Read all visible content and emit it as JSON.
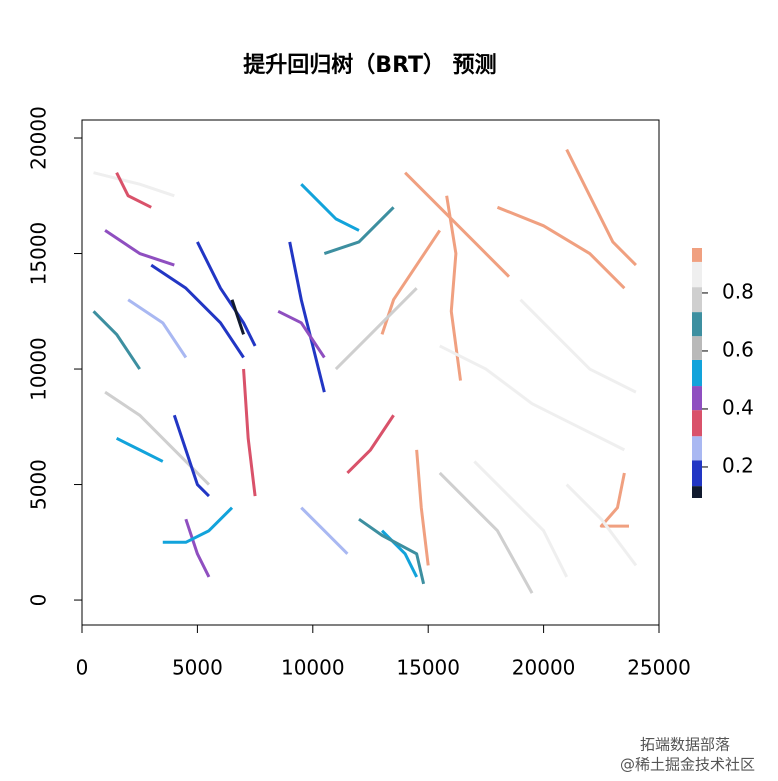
{
  "chart_data": {
    "type": "stream-map",
    "title": "提升回归树（BRT） 预测",
    "xlim": [
      0,
      25000
    ],
    "ylim": [
      -1080,
      20780
    ],
    "xticks": [
      0,
      5000,
      10000,
      15000,
      20000,
      25000
    ],
    "yticks": [
      0,
      5000,
      10000,
      15000,
      20000
    ],
    "colorbar": {
      "breaks": [
        0.093,
        0.134,
        0.223,
        0.306,
        0.396,
        0.479,
        0.569,
        0.651,
        0.734,
        0.82,
        0.907,
        0.955
      ],
      "colors": [
        "#111a2e",
        "#2236c4",
        "#a9b8f2",
        "#d9526a",
        "#8f4fc0",
        "#12a3db",
        "#b9b9b9",
        "#3d8fa0",
        "#cfcfcf",
        "#efefef",
        "#f0a080"
      ],
      "ticks": [
        0.2,
        0.4,
        0.6,
        0.8
      ]
    },
    "streams": [
      {
        "x": [
          14000,
          15500,
          17000,
          18500
        ],
        "y": [
          18500,
          17000,
          15500,
          14000
        ],
        "value": 0.93
      },
      {
        "x": [
          21000,
          22000,
          23000,
          24000
        ],
        "y": [
          19500,
          17500,
          15500,
          14500
        ],
        "value": 0.93
      },
      {
        "x": [
          18000,
          20000,
          22000,
          23500
        ],
        "y": [
          17000,
          16200,
          15000,
          13500
        ],
        "value": 0.93
      },
      {
        "x": [
          15500,
          14500,
          13500,
          13000
        ],
        "y": [
          16000,
          14500,
          13000,
          11500
        ],
        "value": 0.93
      },
      {
        "x": [
          15800,
          16200,
          16000,
          16400
        ],
        "y": [
          17500,
          15000,
          12500,
          9500
        ],
        "value": 0.93
      },
      {
        "x": [
          14500,
          14700,
          15000
        ],
        "y": [
          6500,
          4000,
          1500
        ],
        "value": 0.93
      },
      {
        "x": [
          23500,
          23200,
          22500,
          23700
        ],
        "y": [
          5500,
          4000,
          3200,
          3200
        ],
        "value": 0.93
      },
      {
        "x": [
          15500,
          17500,
          19500,
          21500,
          23500
        ],
        "y": [
          11000,
          10000,
          8500,
          7500,
          6500
        ],
        "value": 0.86
      },
      {
        "x": [
          17000,
          18500,
          20000,
          21000
        ],
        "y": [
          6000,
          4500,
          3000,
          1000
        ],
        "value": 0.86
      },
      {
        "x": [
          19000,
          20500,
          22000,
          24000
        ],
        "y": [
          13000,
          11500,
          10000,
          9000
        ],
        "value": 0.86
      },
      {
        "x": [
          21000,
          22500,
          24000
        ],
        "y": [
          5000,
          3500,
          1500
        ],
        "value": 0.86
      },
      {
        "x": [
          15500,
          16500,
          18000,
          19500
        ],
        "y": [
          5500,
          4500,
          3000,
          300
        ],
        "value": 0.77
      },
      {
        "x": [
          11000,
          12500,
          13500,
          14500
        ],
        "y": [
          10000,
          11500,
          12500,
          13500
        ],
        "value": 0.77
      },
      {
        "x": [
          1000,
          2500,
          4000,
          5500
        ],
        "y": [
          9000,
          8000,
          6500,
          5000
        ],
        "value": 0.77
      },
      {
        "x": [
          3000,
          4500,
          6000,
          7000
        ],
        "y": [
          14500,
          13500,
          12000,
          10500
        ],
        "value": 0.18
      },
      {
        "x": [
          5000,
          6000,
          7000,
          7500
        ],
        "y": [
          15500,
          13500,
          12000,
          11000
        ],
        "value": 0.18
      },
      {
        "x": [
          4000,
          4500,
          5000,
          5500
        ],
        "y": [
          8000,
          6500,
          5000,
          4500
        ],
        "value": 0.18
      },
      {
        "x": [
          6500,
          7000
        ],
        "y": [
          13000,
          11500
        ],
        "value": 0.11
      },
      {
        "x": [
          9000,
          9500,
          10000,
          10500
        ],
        "y": [
          15500,
          13000,
          11000,
          9000
        ],
        "value": 0.18
      },
      {
        "x": [
          2000,
          3500,
          4500
        ],
        "y": [
          13000,
          12000,
          10500
        ],
        "value": 0.26
      },
      {
        "x": [
          9500,
          10500,
          11500
        ],
        "y": [
          4000,
          3000,
          2000
        ],
        "value": 0.26
      },
      {
        "x": [
          7000,
          7200,
          7500
        ],
        "y": [
          10000,
          7000,
          4500
        ],
        "value": 0.35
      },
      {
        "x": [
          11500,
          12500,
          13500
        ],
        "y": [
          5500,
          6500,
          8000
        ],
        "value": 0.35
      },
      {
        "x": [
          1000,
          2500,
          4000
        ],
        "y": [
          16000,
          15000,
          14500
        ],
        "value": 0.44
      },
      {
        "x": [
          4500,
          5000,
          5500
        ],
        "y": [
          3500,
          2000,
          1000
        ],
        "value": 0.44
      },
      {
        "x": [
          3500,
          4500,
          5500,
          6500
        ],
        "y": [
          2500,
          2500,
          3000,
          4000
        ],
        "value": 0.52
      },
      {
        "x": [
          9500,
          10500,
          11000,
          12000
        ],
        "y": [
          18000,
          17000,
          16500,
          16000
        ],
        "value": 0.52
      },
      {
        "x": [
          13000,
          14000,
          14500
        ],
        "y": [
          3000,
          2000,
          1000
        ],
        "value": 0.52
      },
      {
        "x": [
          10500,
          12000,
          13500
        ],
        "y": [
          15000,
          15500,
          17000
        ],
        "value": 0.69
      },
      {
        "x": [
          500,
          1500,
          2500
        ],
        "y": [
          12500,
          11500,
          10000
        ],
        "value": 0.69
      },
      {
        "x": [
          12000,
          13000,
          14500,
          14800
        ],
        "y": [
          3500,
          2800,
          2000,
          700
        ],
        "value": 0.69
      },
      {
        "x": [
          500,
          2500,
          4000
        ],
        "y": [
          18500,
          18000,
          17500
        ],
        "value": 0.86
      },
      {
        "x": [
          1500,
          2000,
          3000
        ],
        "y": [
          18500,
          17500,
          17000
        ],
        "value": 0.35
      },
      {
        "x": [
          8500,
          9500,
          10500
        ],
        "y": [
          12500,
          12000,
          10500
        ],
        "value": 0.44
      },
      {
        "x": [
          1500,
          2500,
          3500
        ],
        "y": [
          7000,
          6500,
          6000
        ],
        "value": 0.52
      }
    ],
    "annotations": [
      "拓端数据部落",
      "@稀土掘金技术社区"
    ]
  }
}
